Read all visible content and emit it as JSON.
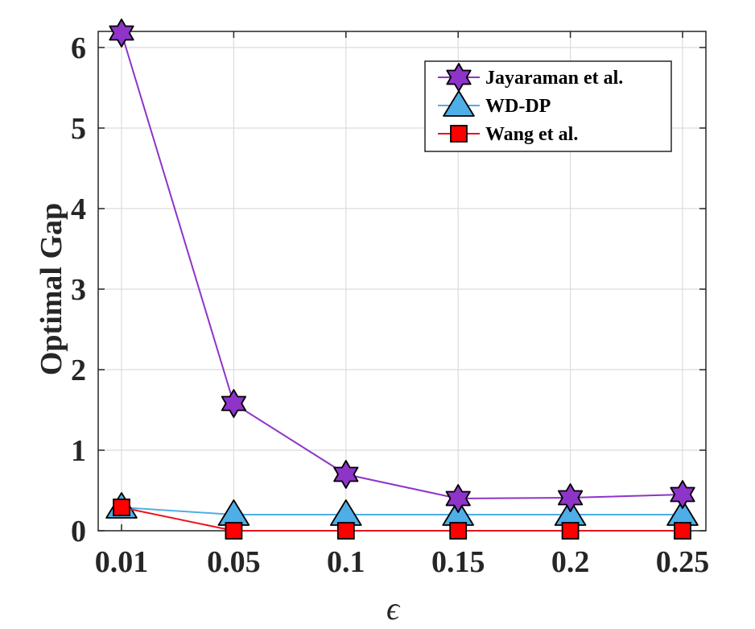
{
  "chart_data": {
    "type": "line",
    "x": [
      0.01,
      0.05,
      0.1,
      0.15,
      0.2,
      0.25
    ],
    "x_tick_labels": [
      "0.01",
      "0.05",
      "0.1",
      "0.15",
      "0.2",
      "0.25"
    ],
    "xlabel": "ϵ",
    "ylabel": "Optimal Gap",
    "ylim": [
      0,
      6.2
    ],
    "y_ticks": [
      0,
      1,
      2,
      3,
      4,
      5,
      6
    ],
    "y_tick_labels": [
      "0",
      "1",
      "2",
      "3",
      "4",
      "5",
      "6"
    ],
    "grid": true,
    "legend_position": "top-right",
    "series": [
      {
        "name": "Jayaraman et al.",
        "marker": "hexagram",
        "line_color": "#8E34C8",
        "marker_color": "#8E34C8",
        "values": [
          6.18,
          1.58,
          0.7,
          0.4,
          0.41,
          0.45
        ]
      },
      {
        "name": "WD-DP",
        "marker": "triangle",
        "line_color": "#4DAEE8",
        "marker_color": "#4DAEE8",
        "values": [
          0.29,
          0.2,
          0.2,
          0.2,
          0.2,
          0.2
        ]
      },
      {
        "name": "Wang et al.",
        "marker": "square",
        "line_color": "#E8141B",
        "marker_color": "#FF0000",
        "values": [
          0.29,
          0.0,
          0.0,
          0.0,
          0.0,
          0.0
        ]
      }
    ]
  }
}
